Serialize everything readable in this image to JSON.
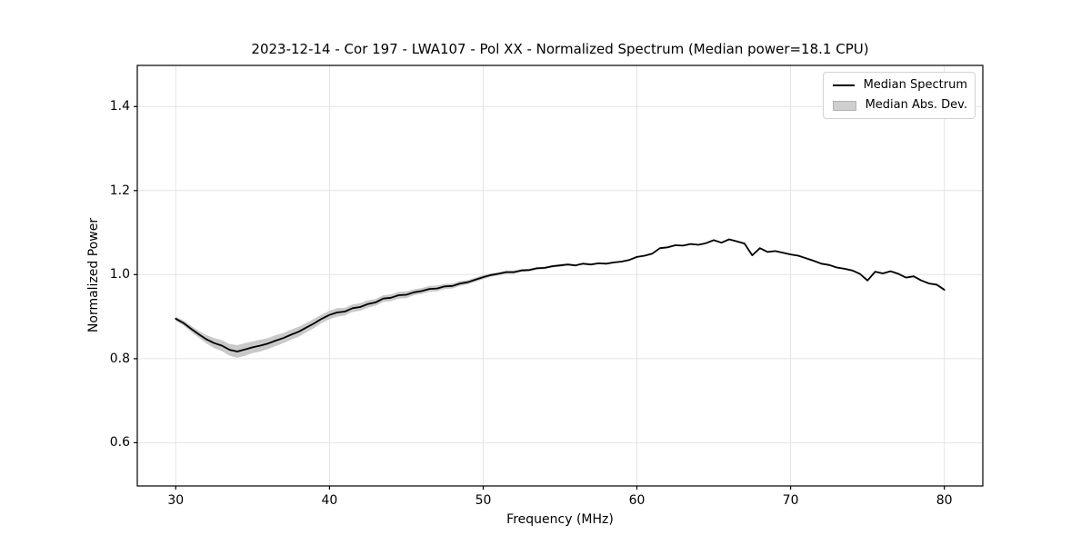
{
  "colors": {
    "line": "#000000",
    "band": "#c9c9c9",
    "grid": "#e4e4e4",
    "spine": "#000000",
    "legend_border": "#d2d2d2",
    "background": "#ffffff"
  },
  "chart_data": {
    "type": "line",
    "title": "2023-12-14 - Cor 197 - LWA107 - Pol XX - Normalized Spectrum (Median power=18.1 CPU)",
    "xlabel": "Frequency (MHz)",
    "ylabel": "Normalized Power",
    "xlim": [
      27.5,
      82.5
    ],
    "ylim": [
      0.497,
      1.498
    ],
    "xticks": [
      30,
      40,
      50,
      60,
      70,
      80
    ],
    "yticks": [
      0.6,
      0.8,
      1.0,
      1.2,
      1.4
    ],
    "xtick_labels": [
      "30",
      "40",
      "50",
      "60",
      "70",
      "80"
    ],
    "ytick_labels": [
      "0.6",
      "0.8",
      "1.0",
      "1.2",
      "1.4"
    ],
    "grid": true,
    "legend": {
      "position": "upper right",
      "items": [
        {
          "label": "Median Spectrum",
          "type": "line",
          "color": "#000000"
        },
        {
          "label": "Median Abs. Dev.",
          "type": "patch",
          "color": "#cfcfcf"
        }
      ]
    },
    "series": [
      {
        "name": "Median Spectrum",
        "type": "line",
        "color": "#000000",
        "x": [
          30,
          30.5,
          31,
          31.5,
          32,
          32.5,
          33,
          33.5,
          34,
          34.5,
          35,
          35.5,
          36,
          36.5,
          37,
          37.5,
          38,
          38.5,
          39,
          39.5,
          40,
          40.5,
          41,
          41.5,
          42,
          42.5,
          43,
          43.5,
          44,
          44.5,
          45,
          45.5,
          46,
          46.5,
          47,
          47.5,
          48,
          48.5,
          49,
          49.5,
          50,
          50.5,
          51,
          51.5,
          52,
          52.5,
          53,
          53.5,
          54,
          54.5,
          55,
          55.5,
          56,
          56.5,
          57,
          57.5,
          58,
          58.5,
          59,
          59.5,
          60,
          60.5,
          61,
          61.5,
          62,
          62.5,
          63,
          63.5,
          64,
          64.5,
          65,
          65.5,
          66,
          66.5,
          67,
          67.5,
          68,
          68.5,
          69,
          69.5,
          70,
          70.5,
          71,
          71.5,
          72,
          72.5,
          73,
          73.5,
          74,
          74.5,
          75,
          75.5,
          76,
          76.5,
          77,
          77.5,
          78,
          78.5,
          79,
          79.5,
          80
        ],
        "y": [
          0.895,
          0.885,
          0.871,
          0.858,
          0.846,
          0.837,
          0.831,
          0.821,
          0.817,
          0.822,
          0.827,
          0.831,
          0.836,
          0.843,
          0.849,
          0.857,
          0.864,
          0.874,
          0.884,
          0.895,
          0.904,
          0.91,
          0.912,
          0.92,
          0.923,
          0.93,
          0.934,
          0.943,
          0.945,
          0.951,
          0.952,
          0.958,
          0.961,
          0.966,
          0.967,
          0.972,
          0.973,
          0.979,
          0.982,
          0.988,
          0.994,
          0.999,
          1.002,
          1.006,
          1.006,
          1.01,
          1.011,
          1.015,
          1.016,
          1.02,
          1.022,
          1.024,
          1.022,
          1.026,
          1.024,
          1.027,
          1.026,
          1.029,
          1.031,
          1.035,
          1.042,
          1.045,
          1.05,
          1.063,
          1.065,
          1.07,
          1.069,
          1.073,
          1.071,
          1.075,
          1.082,
          1.076,
          1.084,
          1.079,
          1.074,
          1.046,
          1.063,
          1.054,
          1.056,
          1.052,
          1.048,
          1.045,
          1.039,
          1.033,
          1.026,
          1.023,
          1.017,
          1.014,
          1.01,
          1.002,
          0.986,
          1.007,
          1.003,
          1.008,
          1.002,
          0.993,
          0.996,
          0.986,
          0.979,
          0.976,
          0.964
        ]
      },
      {
        "name": "Median Abs. Dev.",
        "type": "band",
        "color": "#c9c9c9",
        "half_width": [
          0.005,
          0.006,
          0.007,
          0.008,
          0.01,
          0.012,
          0.013,
          0.014,
          0.015,
          0.015,
          0.014,
          0.014,
          0.013,
          0.013,
          0.012,
          0.012,
          0.012,
          0.011,
          0.011,
          0.01,
          0.01,
          0.01,
          0.009,
          0.009,
          0.009,
          0.009,
          0.008,
          0.008,
          0.008,
          0.008,
          0.008,
          0.007,
          0.007,
          0.007,
          0.007,
          0.006,
          0.006,
          0.006,
          0.005,
          0.005,
          0.005,
          0.004,
          0.004,
          0.004,
          0.004,
          0.003,
          0.003,
          0.003,
          0.003,
          0.003,
          0.003,
          0.002,
          0.002,
          0.002,
          0.002,
          0.002,
          0.002,
          0.002,
          0.002,
          0.002,
          0.002,
          0.002,
          0.002,
          0.002,
          0.002,
          0.002,
          0.002,
          0.002,
          0.002,
          0.002,
          0.002,
          0.002,
          0.002,
          0.002,
          0.002,
          0.002,
          0.002,
          0.002,
          0.002,
          0.002,
          0.002,
          0.002,
          0.002,
          0.002,
          0.002,
          0.002,
          0.002,
          0.002,
          0.002,
          0.002,
          0.002,
          0.002,
          0.002,
          0.002,
          0.002,
          0.002,
          0.002,
          0.002,
          0.002,
          0.003,
          0.003
        ]
      }
    ]
  }
}
